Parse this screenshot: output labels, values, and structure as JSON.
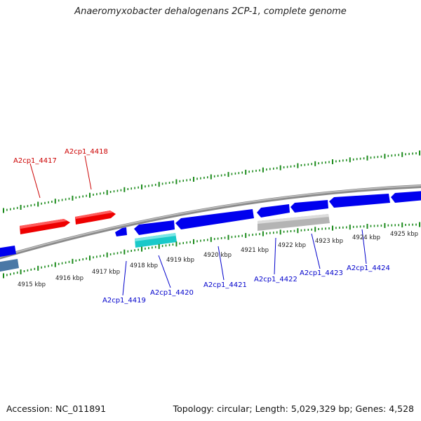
{
  "title": "Anaeromyxobacter dehalogenans 2CP-1, complete genome",
  "footer": {
    "accession": "Accession: NC_011891",
    "topology": "Topology: circular; Length: 5,029,329 bp; Genes: 4,528"
  },
  "colors": {
    "forward_gene": "#ee0000",
    "reverse_gene": "#0000ee",
    "steelblue_gene": "#4a78a6",
    "cyan_gene": "#19c9c9",
    "gray_gene": "#b4b4b4",
    "backbone": "#7f7f7f",
    "tick": "#1a8a1a",
    "forward_label": "#cc0000",
    "reverse_label": "#0000cc",
    "scale_label": "#222222"
  },
  "scale_labels": [
    "4915 kbp",
    "4916 kbp",
    "4917 kbp",
    "4918 kbp",
    "4919 kbp",
    "4920 kbp",
    "4921 kbp",
    "4922 kbp",
    "4923 kbp",
    "4924 kbp",
    "4925 kbp"
  ],
  "forward_gene_labels": [
    "A2cp1_4417",
    "A2cp1_4418"
  ],
  "reverse_gene_labels": [
    "A2cp1_4419",
    "A2cp1_4420",
    "A2cp1_4421",
    "A2cp1_4422",
    "A2cp1_4423",
    "A2cp1_4424"
  ]
}
